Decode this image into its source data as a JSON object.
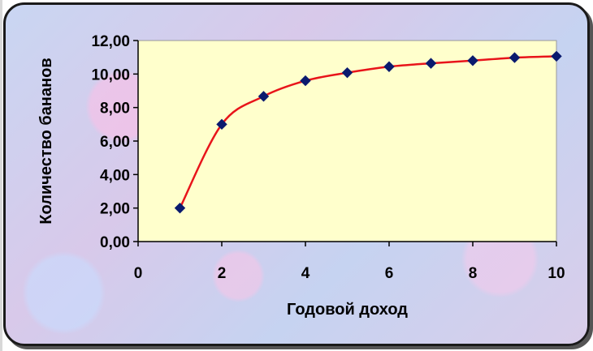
{
  "chart_data": {
    "type": "line",
    "title": "",
    "xlabel": "Годовой доход",
    "ylabel": "Количество бананов",
    "xlim": [
      0,
      10
    ],
    "ylim": [
      0,
      12
    ],
    "x_ticks": [
      "0",
      "2",
      "4",
      "6",
      "8",
      "10"
    ],
    "y_ticks": [
      "0,00",
      "2,00",
      "4,00",
      "6,00",
      "8,00",
      "10,00",
      "12,00"
    ],
    "grid": false,
    "legend": "none",
    "smooth": true,
    "series": [
      {
        "x": [
          1,
          2,
          3,
          4,
          5,
          6,
          7,
          8,
          9,
          10
        ],
        "y": [
          2.0,
          7.0,
          8.67,
          9.6,
          10.08,
          10.44,
          10.64,
          10.8,
          10.98,
          11.06
        ],
        "line_color": "#e8141a",
        "marker_color": "#0a1a6e"
      }
    ],
    "plot_background": "#ffffcc"
  }
}
